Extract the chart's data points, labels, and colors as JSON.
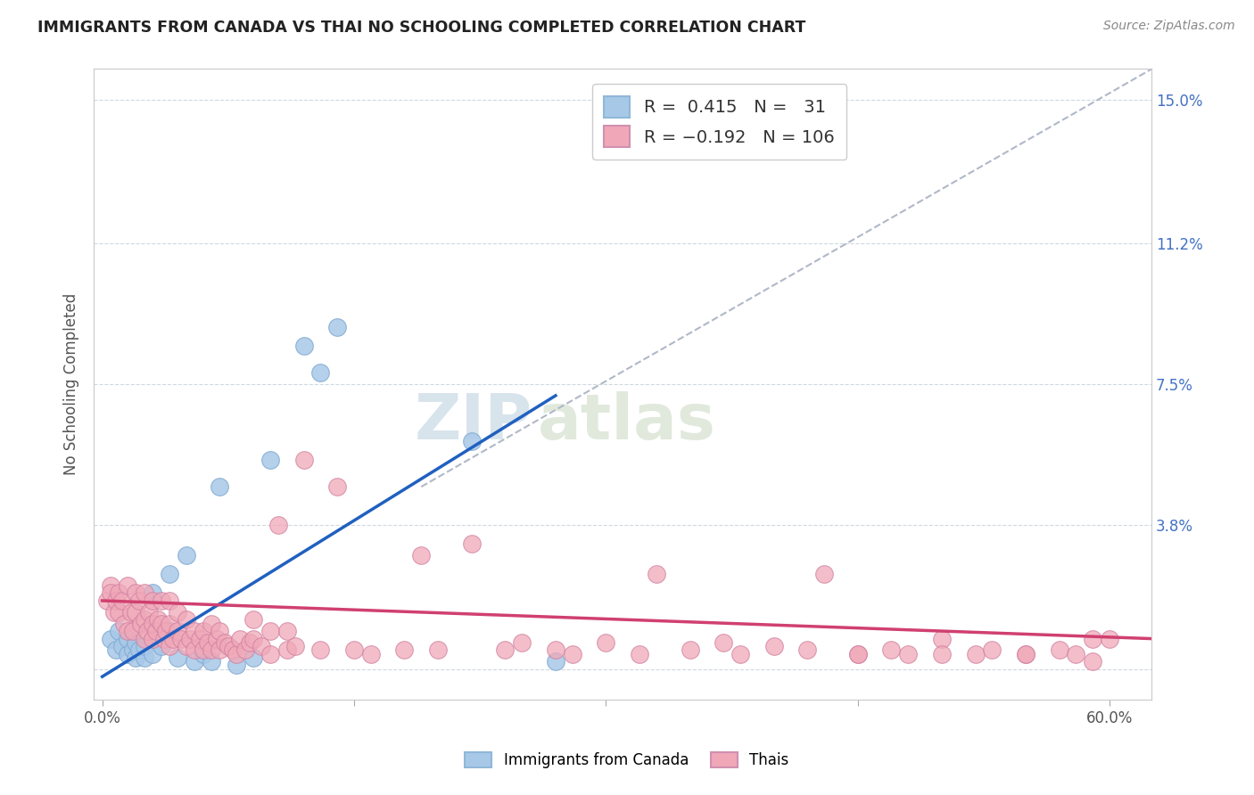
{
  "title": "IMMIGRANTS FROM CANADA VS THAI NO SCHOOLING COMPLETED CORRELATION CHART",
  "source": "Source: ZipAtlas.com",
  "ylabel_label": "No Schooling Completed",
  "legend_blue_r": "0.415",
  "legend_blue_n": "31",
  "legend_pink_r": "-0.192",
  "legend_pink_n": "106",
  "blue_color": "#a8c8e8",
  "pink_color": "#f0a8b8",
  "blue_line_color": "#2060c0",
  "pink_line_color": "#d04070",
  "dashed_line_color": "#b0b8c8",
  "watermark_zip": "ZIP",
  "watermark_atlas": "atlas",
  "blue_scatter_x": [
    0.005,
    0.008,
    0.01,
    0.012,
    0.015,
    0.015,
    0.018,
    0.02,
    0.02,
    0.022,
    0.025,
    0.025,
    0.03,
    0.03,
    0.035,
    0.04,
    0.04,
    0.045,
    0.05,
    0.055,
    0.06,
    0.065,
    0.07,
    0.08,
    0.09,
    0.1,
    0.12,
    0.13,
    0.14,
    0.22,
    0.27
  ],
  "blue_scatter_y": [
    0.008,
    0.005,
    0.01,
    0.006,
    0.004,
    0.008,
    0.005,
    0.003,
    0.007,
    0.005,
    0.003,
    0.006,
    0.004,
    0.02,
    0.006,
    0.01,
    0.025,
    0.003,
    0.03,
    0.002,
    0.004,
    0.002,
    0.048,
    0.001,
    0.003,
    0.055,
    0.085,
    0.078,
    0.09,
    0.06,
    0.002
  ],
  "pink_scatter_x": [
    0.003,
    0.005,
    0.005,
    0.007,
    0.008,
    0.01,
    0.01,
    0.012,
    0.013,
    0.015,
    0.015,
    0.017,
    0.018,
    0.02,
    0.02,
    0.022,
    0.023,
    0.025,
    0.025,
    0.025,
    0.027,
    0.028,
    0.03,
    0.03,
    0.03,
    0.032,
    0.033,
    0.035,
    0.035,
    0.037,
    0.038,
    0.04,
    0.04,
    0.04,
    0.042,
    0.045,
    0.045,
    0.047,
    0.05,
    0.05,
    0.052,
    0.055,
    0.055,
    0.058,
    0.06,
    0.06,
    0.063,
    0.065,
    0.065,
    0.068,
    0.07,
    0.07,
    0.073,
    0.075,
    0.078,
    0.08,
    0.082,
    0.085,
    0.088,
    0.09,
    0.09,
    0.095,
    0.1,
    0.1,
    0.105,
    0.11,
    0.11,
    0.115,
    0.12,
    0.13,
    0.14,
    0.15,
    0.16,
    0.18,
    0.19,
    0.2,
    0.22,
    0.24,
    0.25,
    0.27,
    0.28,
    0.3,
    0.32,
    0.33,
    0.35,
    0.37,
    0.38,
    0.4,
    0.42,
    0.43,
    0.45,
    0.47,
    0.48,
    0.5,
    0.52,
    0.53,
    0.55,
    0.57,
    0.58,
    0.59,
    0.6,
    0.45,
    0.5,
    0.55,
    0.59
  ],
  "pink_scatter_y": [
    0.018,
    0.022,
    0.02,
    0.015,
    0.018,
    0.015,
    0.02,
    0.018,
    0.012,
    0.022,
    0.01,
    0.015,
    0.01,
    0.015,
    0.02,
    0.018,
    0.012,
    0.008,
    0.013,
    0.02,
    0.01,
    0.015,
    0.008,
    0.012,
    0.018,
    0.01,
    0.013,
    0.012,
    0.018,
    0.008,
    0.01,
    0.006,
    0.012,
    0.018,
    0.008,
    0.01,
    0.015,
    0.008,
    0.006,
    0.013,
    0.008,
    0.005,
    0.01,
    0.008,
    0.005,
    0.01,
    0.007,
    0.005,
    0.012,
    0.008,
    0.005,
    0.01,
    0.007,
    0.006,
    0.005,
    0.004,
    0.008,
    0.005,
    0.007,
    0.008,
    0.013,
    0.006,
    0.004,
    0.01,
    0.038,
    0.005,
    0.01,
    0.006,
    0.055,
    0.005,
    0.048,
    0.005,
    0.004,
    0.005,
    0.03,
    0.005,
    0.033,
    0.005,
    0.007,
    0.005,
    0.004,
    0.007,
    0.004,
    0.025,
    0.005,
    0.007,
    0.004,
    0.006,
    0.005,
    0.025,
    0.004,
    0.005,
    0.004,
    0.008,
    0.004,
    0.005,
    0.004,
    0.005,
    0.004,
    0.008,
    0.008,
    0.004,
    0.004,
    0.004,
    0.002
  ],
  "xlim": [
    -0.005,
    0.625
  ],
  "ylim": [
    -0.008,
    0.158
  ],
  "xtick_positions": [
    0.0,
    0.15,
    0.3,
    0.45,
    0.6
  ],
  "xtick_labels": [
    "0.0%",
    "",
    "",
    "",
    "60.0%"
  ],
  "ytick_positions": [
    0.0,
    0.038,
    0.075,
    0.112,
    0.15
  ],
  "ytick_labels_right": [
    "",
    "3.8%",
    "7.5%",
    "11.2%",
    "15.0%"
  ],
  "blue_line_x": [
    0.0,
    0.27
  ],
  "blue_line_y_start": -0.002,
  "blue_line_y_end": 0.072,
  "pink_line_x": [
    0.0,
    0.625
  ],
  "pink_line_y_start": 0.018,
  "pink_line_y_end": 0.008,
  "dash_line_x": [
    0.19,
    0.625
  ],
  "dash_line_y": [
    0.048,
    0.158
  ]
}
